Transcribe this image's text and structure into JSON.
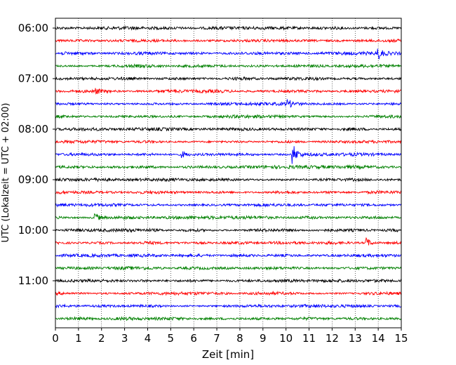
{
  "chart_data": {
    "type": "line",
    "subtype": "helicorder (seismogram drum plot)",
    "xlabel": "Zeit  [min]",
    "ylabel": "UTC (Lokalzeit = UTC + 02:00)",
    "xlim": [
      0,
      15
    ],
    "x_ticks": [
      "0",
      "1",
      "2",
      "3",
      "4",
      "5",
      "6",
      "7",
      "8",
      "9",
      "10",
      "11",
      "12",
      "13",
      "14",
      "15"
    ],
    "y_tick_labels": [
      "06:00",
      "07:00",
      "08:00",
      "09:00",
      "10:00",
      "11:00"
    ],
    "row_minutes": 15,
    "start_time": "06:00",
    "grid": "vertical dotted lines at each minute",
    "trace_colors": [
      "#000000",
      "#ff0000",
      "#0000ff",
      "#008000"
    ],
    "series": [
      {
        "row_time": "06:00",
        "events": []
      },
      {
        "row_time": "06:15",
        "events": []
      },
      {
        "row_time": "06:30",
        "events": [
          {
            "x": 14.0,
            "amplitude": 0.45
          }
        ]
      },
      {
        "row_time": "06:45",
        "events": []
      },
      {
        "row_time": "07:00",
        "events": []
      },
      {
        "row_time": "07:15",
        "events": [
          {
            "x": 1.7,
            "amplitude": 0.28
          }
        ]
      },
      {
        "row_time": "07:30",
        "events": [
          {
            "x": 10.1,
            "amplitude": 0.3
          }
        ]
      },
      {
        "row_time": "07:45",
        "events": []
      },
      {
        "row_time": "08:00",
        "events": []
      },
      {
        "row_time": "08:15",
        "events": []
      },
      {
        "row_time": "08:30",
        "events": [
          {
            "x": 10.3,
            "amplitude": 0.9
          },
          {
            "x": 5.5,
            "amplitude": 0.25
          }
        ]
      },
      {
        "row_time": "08:45",
        "events": []
      },
      {
        "row_time": "09:00",
        "events": []
      },
      {
        "row_time": "09:15",
        "events": []
      },
      {
        "row_time": "09:30",
        "events": []
      },
      {
        "row_time": "09:45",
        "events": [
          {
            "x": 1.7,
            "amplitude": 0.45
          }
        ]
      },
      {
        "row_time": "10:00",
        "events": []
      },
      {
        "row_time": "10:15",
        "events": [
          {
            "x": 13.5,
            "amplitude": 0.4
          }
        ]
      },
      {
        "row_time": "10:30",
        "events": []
      },
      {
        "row_time": "10:45",
        "events": []
      },
      {
        "row_time": "11:00",
        "events": []
      },
      {
        "row_time": "11:15",
        "events": []
      },
      {
        "row_time": "11:30",
        "events": []
      },
      {
        "row_time": "11:45",
        "events": []
      }
    ]
  }
}
